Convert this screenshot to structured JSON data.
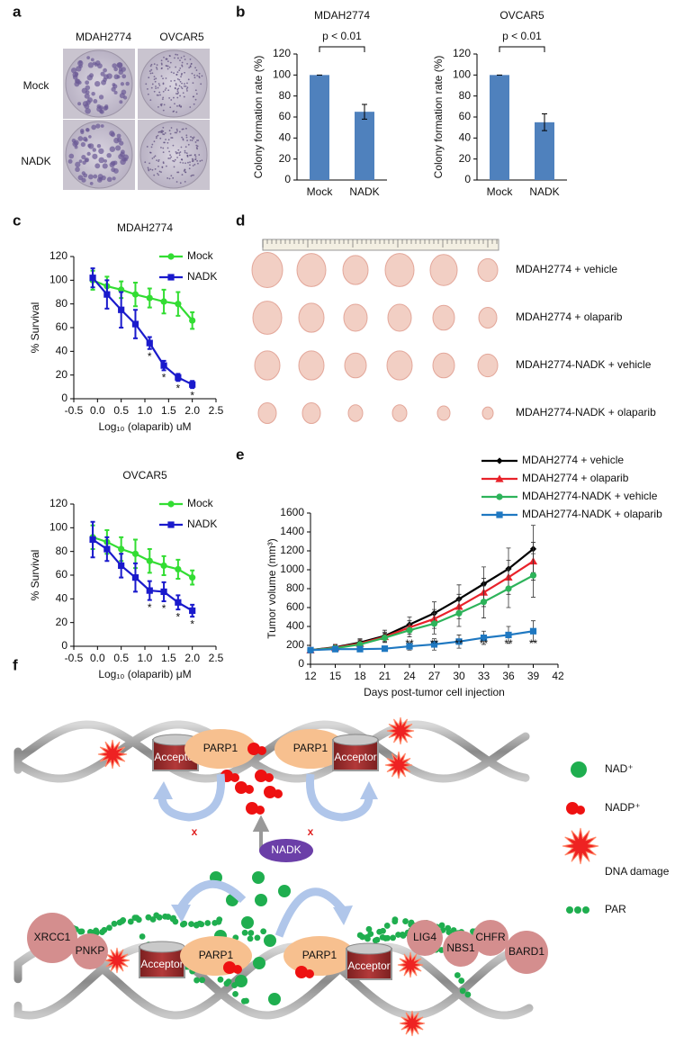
{
  "panel_labels": [
    "a",
    "b",
    "c",
    "d",
    "e",
    "f"
  ],
  "panel_a": {
    "columns": [
      "MDAH2774",
      "OVCAR5"
    ],
    "rows": [
      "Mock",
      "NADK"
    ]
  },
  "panel_d": {
    "rows": [
      "MDAH2774 + vehicle",
      "MDAH2774 + olaparib",
      "MDAH2774-NADK + vehicle",
      "MDAH2774-NADK + olaparib"
    ]
  },
  "chart_data": [
    {
      "type": "bar",
      "title": "MDAH2774",
      "ylabel": "Colony formation rate (%)",
      "annotation": "p < 0.01",
      "categories": [
        "Mock",
        "NADK"
      ],
      "values": [
        100,
        65
      ],
      "errors": [
        0,
        7
      ],
      "color": "#4f81bd",
      "ylim": [
        0,
        120
      ],
      "yticks": [
        0,
        20,
        40,
        60,
        80,
        100,
        120
      ]
    },
    {
      "type": "bar",
      "title": "OVCAR5",
      "ylabel": "Colony formation rate (%)",
      "annotation": "p < 0.01",
      "categories": [
        "Mock",
        "NADK"
      ],
      "values": [
        100,
        55
      ],
      "errors": [
        0,
        8
      ],
      "color": "#4f81bd",
      "ylim": [
        0,
        120
      ],
      "yticks": [
        0,
        20,
        40,
        60,
        80,
        100,
        120
      ]
    },
    {
      "type": "line",
      "title": "MDAH2774",
      "xlabel": "Log₁₀ (olaparib) uM",
      "ylabel": "% Survival",
      "legend": "upper right",
      "x": [
        -0.1,
        0.2,
        0.5,
        0.8,
        1.1,
        1.4,
        1.7,
        2.0
      ],
      "series": [
        {
          "name": "Mock",
          "color": "#33dd33",
          "marker": "circle",
          "values": [
            100,
            95,
            92,
            88,
            85,
            82,
            80,
            66
          ],
          "errors": [
            8,
            8,
            7,
            10,
            8,
            10,
            10,
            7
          ]
        },
        {
          "name": "NADK",
          "color": "#1a1acc",
          "marker": "square",
          "values": [
            102,
            88,
            75,
            63,
            47,
            28,
            18,
            12
          ],
          "errors": [
            8,
            12,
            15,
            12,
            5,
            4,
            3,
            3
          ]
        }
      ],
      "significance": {
        "x": [
          1.1,
          1.4,
          1.7,
          2.0
        ],
        "label": "*"
      },
      "xlim": [
        -0.5,
        2.5
      ],
      "xticks": [
        -0.5,
        {
          "value": 0,
          "label": "0.0"
        },
        0.5,
        {
          "value": 1,
          "label": "1.0"
        },
        1.5,
        {
          "value": 2,
          "label": "2.0"
        },
        2.5
      ],
      "ylim": [
        0,
        120
      ],
      "yticks": [
        0,
        20,
        40,
        60,
        80,
        100,
        120
      ]
    },
    {
      "type": "line",
      "title": "OVCAR5",
      "xlabel": "Log₁₀ (olaparib) μM",
      "ylabel": "% Survival",
      "legend": "upper right",
      "x": [
        -0.1,
        0.2,
        0.5,
        0.8,
        1.1,
        1.4,
        1.7,
        2.0
      ],
      "series": [
        {
          "name": "Mock",
          "color": "#33dd33",
          "marker": "circle",
          "values": [
            92,
            88,
            82,
            78,
            72,
            68,
            65,
            58
          ],
          "errors": [
            10,
            10,
            10,
            12,
            10,
            8,
            8,
            6
          ]
        },
        {
          "name": "NADK",
          "color": "#1a1acc",
          "marker": "square",
          "values": [
            90,
            82,
            68,
            58,
            47,
            46,
            37,
            30
          ],
          "errors": [
            15,
            10,
            10,
            12,
            8,
            8,
            6,
            5
          ]
        }
      ],
      "significance": {
        "x": [
          1.1,
          1.4,
          1.7,
          2.0
        ],
        "label": "*"
      },
      "xlim": [
        -0.5,
        2.5
      ],
      "xticks": [
        -0.5,
        {
          "value": 0,
          "label": "0.0"
        },
        0.5,
        {
          "value": 1,
          "label": "1.0"
        },
        1.5,
        {
          "value": 2,
          "label": "2.0"
        },
        2.5
      ],
      "ylim": [
        0,
        120
      ],
      "yticks": [
        0,
        20,
        40,
        60,
        80,
        100,
        120
      ]
    },
    {
      "type": "line",
      "xlabel": "Days post-tumor cell injection",
      "ylabel": "Tumor volume (mm³)",
      "legend": "above",
      "x": [
        12,
        15,
        18,
        21,
        24,
        27,
        30,
        33,
        36,
        39
      ],
      "series": [
        {
          "name": "MDAH2774 + vehicle",
          "color": "#000000",
          "marker": "diamond",
          "values": [
            150,
            180,
            230,
            300,
            420,
            540,
            690,
            850,
            1010,
            1220
          ],
          "errors": [
            20,
            30,
            40,
            60,
            80,
            120,
            150,
            180,
            220,
            250
          ]
        },
        {
          "name": "MDAH2774 + olaparib",
          "color": "#e8222a",
          "marker": "triangle",
          "values": [
            150,
            175,
            220,
            290,
            390,
            480,
            610,
            760,
            920,
            1090
          ],
          "errors": [
            20,
            30,
            40,
            50,
            70,
            100,
            130,
            150,
            180,
            200
          ]
        },
        {
          "name": "MDAH2774-NADK + vehicle",
          "color": "#2db35a",
          "marker": "circle",
          "values": [
            150,
            170,
            210,
            280,
            360,
            430,
            540,
            660,
            800,
            940
          ],
          "errors": [
            20,
            30,
            40,
            50,
            70,
            110,
            140,
            170,
            200,
            230
          ]
        },
        {
          "name": "MDAH2774-NADK + olaparib",
          "color": "#1f78c1",
          "marker": "square",
          "values": [
            150,
            160,
            160,
            165,
            190,
            210,
            240,
            280,
            310,
            350
          ],
          "errors": [
            20,
            20,
            20,
            20,
            40,
            60,
            70,
            70,
            90,
            110
          ]
        }
      ],
      "significance": {
        "x": [
          24,
          27,
          30,
          33,
          36,
          39
        ],
        "label": "**"
      },
      "xlim": [
        12,
        42
      ],
      "xticks": [
        12,
        15,
        18,
        21,
        24,
        27,
        30,
        33,
        36,
        39,
        42
      ],
      "ylim": [
        0,
        1600
      ],
      "yticks": [
        0,
        200,
        400,
        600,
        800,
        1000,
        1200,
        1400,
        1600
      ]
    }
  ],
  "panel_f": {
    "acceptor": "Acceptor",
    "parp1": "PARP1",
    "nadk": "NADK",
    "mark": "x",
    "proteins": [
      "XRCC1",
      "PNKP",
      "LIG4",
      "NBS1",
      "CHFR",
      "BARD1"
    ],
    "legend": [
      "NAD⁺",
      "NADP⁺",
      "DNA damage",
      "PAR"
    ]
  }
}
